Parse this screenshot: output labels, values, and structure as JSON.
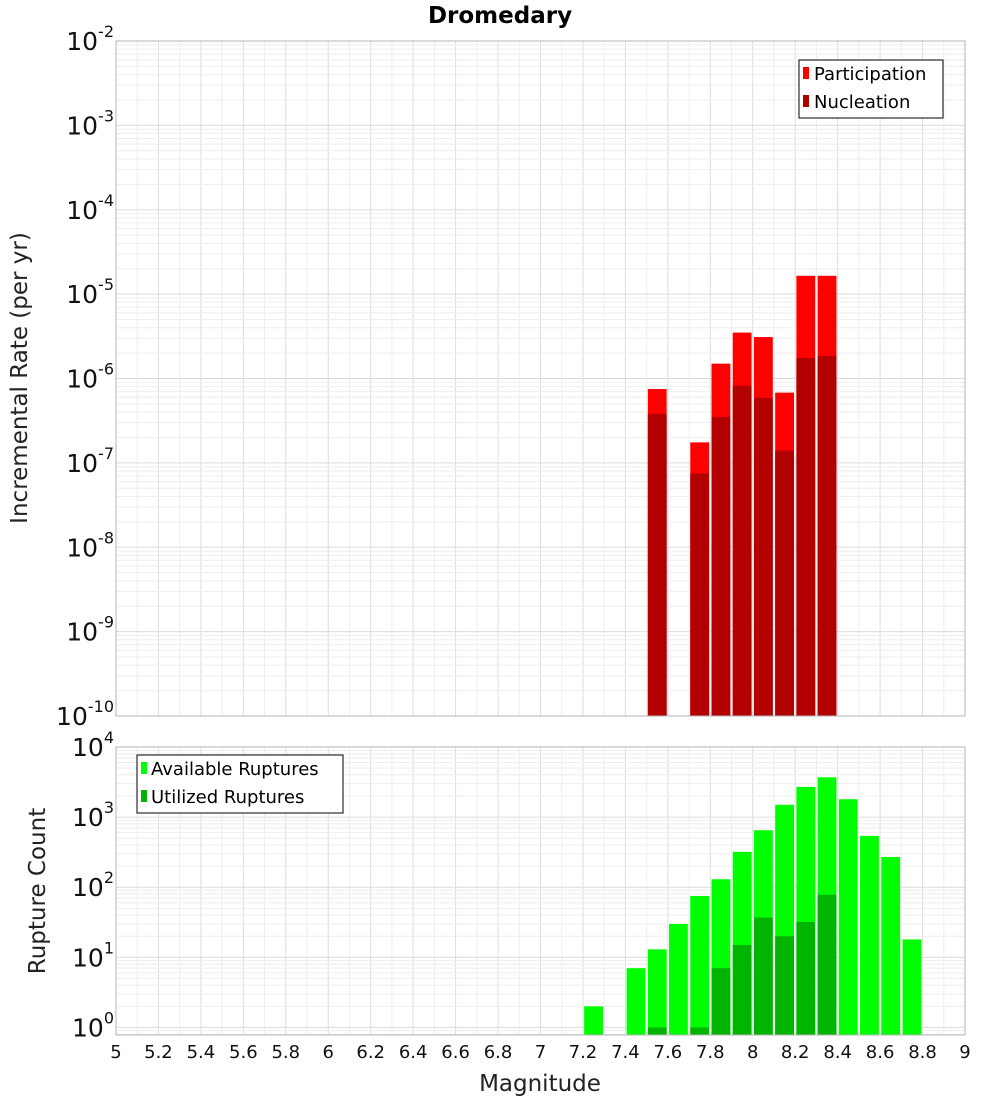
{
  "title": "Dromedary",
  "colors": {
    "participation": "#ff0000",
    "nucleation": "#b20000",
    "available": "#00ff00",
    "utilized": "#00b400",
    "legend_border": "#000000"
  },
  "chart_data": [
    {
      "type": "bar",
      "name": "rate-panel",
      "title": "Dromedary",
      "xlabel": "Magnitude",
      "ylabel": "Incremental Rate (per yr)",
      "yscale": "log",
      "ylim": [
        1e-10,
        0.01
      ],
      "xlim": [
        5,
        9
      ],
      "y_tick_exponents": [
        "-10",
        "-9",
        "-8",
        "-7",
        "-6",
        "-5",
        "-4",
        "-3",
        "-2"
      ],
      "y_tick_base": "10",
      "legend": {
        "placement": "top-right",
        "entries": [
          "Participation",
          "Nucleation"
        ]
      },
      "bin_width": 0.1,
      "series": [
        {
          "name": "Participation",
          "x": [
            7.55,
            7.75,
            7.85,
            7.95,
            8.05,
            8.15,
            8.25,
            8.35
          ],
          "values": [
            7.5e-07,
            1.75e-07,
            1.5e-06,
            3.5e-06,
            3.1e-06,
            6.8e-07,
            1.65e-05,
            1.65e-05
          ]
        },
        {
          "name": "Nucleation",
          "x": [
            7.55,
            7.75,
            7.85,
            7.95,
            8.05,
            8.15,
            8.25,
            8.35
          ],
          "values": [
            3.8e-07,
            7.5e-08,
            3.5e-07,
            8.2e-07,
            5.9e-07,
            1.4e-07,
            1.75e-06,
            1.85e-06
          ]
        }
      ]
    },
    {
      "type": "bar",
      "name": "count-panel",
      "xlabel": "Magnitude",
      "ylabel": "Rupture Count",
      "yscale": "log",
      "ylim": [
        0.78,
        10000
      ],
      "xlim": [
        5,
        9
      ],
      "x_ticks": [
        "5",
        "5.2",
        "5.4",
        "5.6",
        "5.8",
        "6",
        "6.2",
        "6.4",
        "6.6",
        "6.8",
        "7",
        "7.2",
        "7.4",
        "7.6",
        "7.8",
        "8",
        "8.2",
        "8.4",
        "8.6",
        "8.8",
        "9"
      ],
      "y_tick_exponents": [
        "0",
        "1",
        "2",
        "3",
        "4"
      ],
      "y_tick_base": "10",
      "legend": {
        "placement": "top-left",
        "entries": [
          "Available Ruptures",
          "Utilized Ruptures"
        ]
      },
      "bin_width": 0.1,
      "series": [
        {
          "name": "Available Ruptures",
          "x": [
            7.25,
            7.45,
            7.55,
            7.65,
            7.75,
            7.85,
            7.95,
            8.05,
            8.15,
            8.25,
            8.35,
            8.45,
            8.55,
            8.65,
            8.75
          ],
          "values": [
            2,
            7,
            13,
            30,
            75,
            130,
            320,
            650,
            1500,
            2700,
            3700,
            1800,
            540,
            270,
            18
          ]
        },
        {
          "name": "Utilized Ruptures",
          "x": [
            7.55,
            7.75,
            7.85,
            7.95,
            8.05,
            8.15,
            8.25,
            8.35
          ],
          "values": [
            1,
            1,
            7,
            15,
            37,
            20,
            32,
            78
          ]
        }
      ]
    }
  ]
}
